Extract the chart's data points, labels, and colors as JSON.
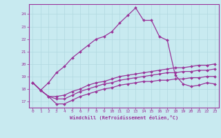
{
  "xlabel": "Windchill (Refroidissement éolien,°C)",
  "bg_color": "#c8eaf0",
  "grid_color": "#b0d8e0",
  "line_color": "#993399",
  "xlim": [
    -0.5,
    23.5
  ],
  "ylim": [
    16.5,
    24.8
  ],
  "yticks": [
    17,
    18,
    19,
    20,
    21,
    22,
    23,
    24
  ],
  "xticks": [
    0,
    1,
    2,
    3,
    4,
    5,
    6,
    7,
    8,
    9,
    10,
    11,
    12,
    13,
    14,
    15,
    16,
    17,
    18,
    19,
    20,
    21,
    22,
    23
  ],
  "series": [
    [
      18.5,
      17.9,
      17.4,
      16.8,
      16.8,
      17.1,
      17.4,
      17.6,
      17.8,
      18.0,
      18.1,
      18.3,
      18.4,
      18.5,
      18.6,
      18.6,
      18.7,
      18.7,
      18.8,
      18.8,
      18.9,
      18.9,
      19.0,
      19.0
    ],
    [
      18.5,
      17.9,
      17.4,
      17.2,
      17.2,
      17.5,
      17.8,
      18.0,
      18.2,
      18.4,
      18.5,
      18.7,
      18.8,
      18.9,
      19.0,
      19.1,
      19.2,
      19.3,
      19.3,
      19.4,
      19.4,
      19.5,
      19.5,
      19.6
    ],
    [
      18.5,
      17.9,
      17.4,
      17.4,
      17.5,
      17.8,
      18.0,
      18.3,
      18.5,
      18.6,
      18.8,
      19.0,
      19.1,
      19.2,
      19.3,
      19.4,
      19.5,
      19.6,
      19.7,
      19.7,
      19.8,
      19.9,
      19.9,
      20.0
    ],
    [
      18.5,
      17.9,
      18.5,
      19.3,
      19.8,
      20.5,
      21.0,
      21.5,
      22.0,
      22.2,
      22.6,
      23.3,
      23.9,
      24.5,
      23.5,
      23.5,
      22.2,
      21.9,
      19.1,
      18.4,
      18.2,
      18.3,
      18.5,
      18.4
    ]
  ]
}
